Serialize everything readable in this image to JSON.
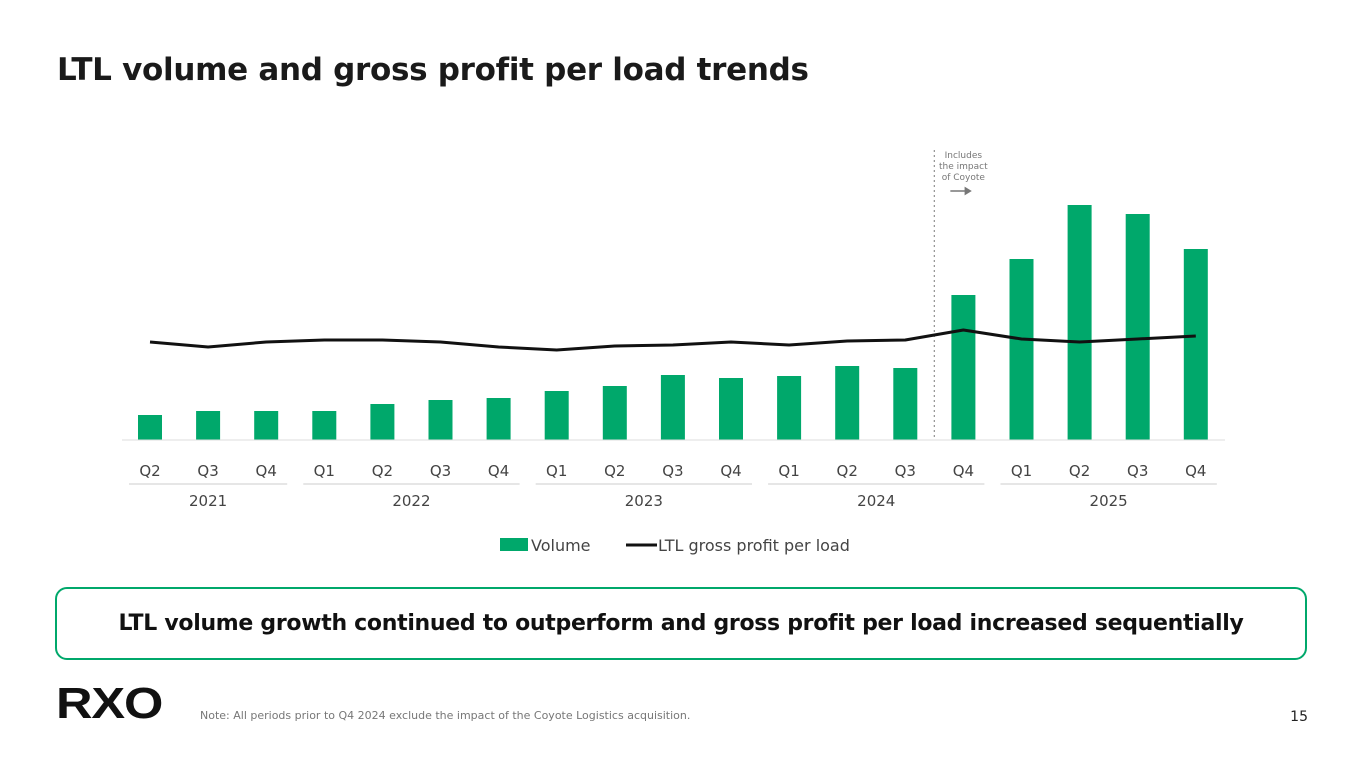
{
  "title": "LTL volume and gross profit per load trends",
  "callout": "LTL volume growth continued to outperform and gross profit per load increased sequentially",
  "logo": "RXO",
  "note": "Note: All periods prior to Q4 2024 exclude the impact of the Coyote Logistics acquisition.",
  "page_number": "15",
  "chart_data": {
    "type": "bar",
    "title": "",
    "xlabel": "",
    "ylabel": "",
    "grid": false,
    "legend_placement": "bottom",
    "categories": [
      "Q2",
      "Q3",
      "Q4",
      "Q1",
      "Q2",
      "Q3",
      "Q4",
      "Q1",
      "Q2",
      "Q3",
      "Q4",
      "Q1",
      "Q2",
      "Q3",
      "Q4",
      "Q1",
      "Q2",
      "Q3",
      "Q4"
    ],
    "years": [
      {
        "label": "2021",
        "start": 0,
        "end": 2
      },
      {
        "label": "2022",
        "start": 3,
        "end": 6
      },
      {
        "label": "2023",
        "start": 7,
        "end": 10
      },
      {
        "label": "2024",
        "start": 11,
        "end": 14
      },
      {
        "label": "2025",
        "start": 15,
        "end": 18
      }
    ],
    "ylim": [
      0,
      240
    ],
    "series": [
      {
        "name": "Volume",
        "type": "bar",
        "color": "#00a86b",
        "values": [
          25,
          29,
          29,
          29,
          36,
          40,
          42,
          49,
          54,
          65,
          62,
          64,
          74,
          72,
          145,
          181,
          235,
          226,
          191
        ]
      },
      {
        "name": "LTL gross profit per load",
        "type": "line",
        "color": "#111111",
        "values": [
          98,
          93,
          98,
          100,
          100,
          98,
          93,
          90,
          94,
          95,
          98,
          95,
          99,
          100,
          110,
          101,
          98,
          101,
          104
        ]
      }
    ],
    "annotation": {
      "text_lines": [
        "Includes",
        "the impact",
        "of Coyote"
      ],
      "after_index": 13
    }
  }
}
